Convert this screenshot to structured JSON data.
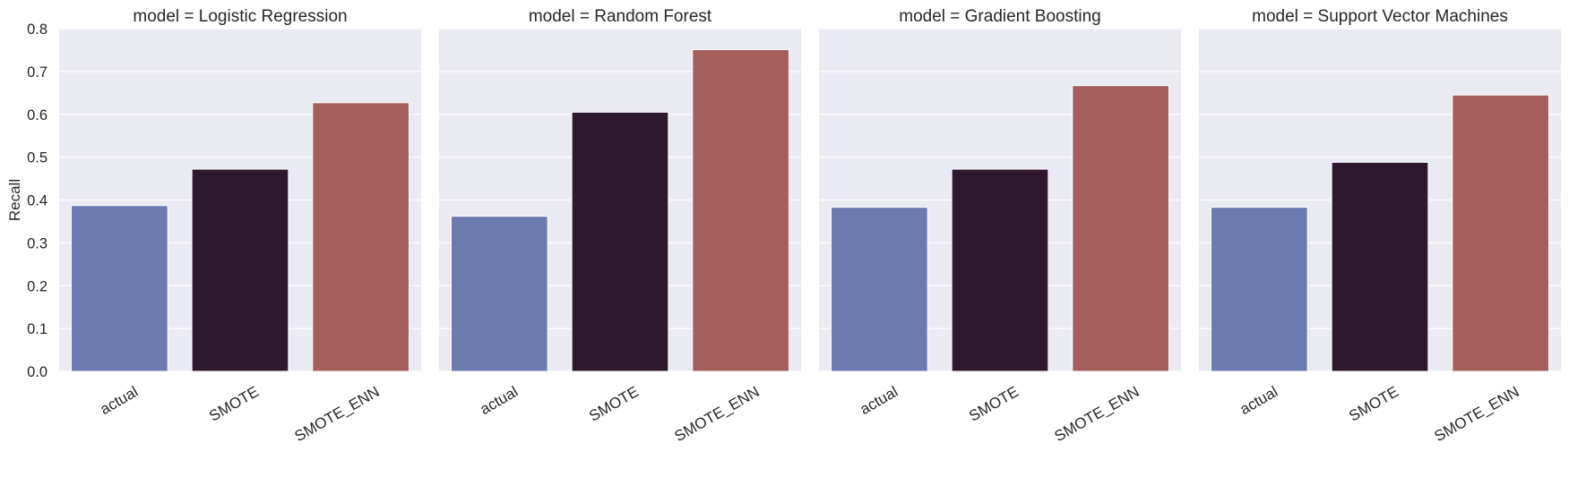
{
  "chart_data": {
    "type": "bar",
    "ylabel": "Recall",
    "ylim": [
      0,
      0.8
    ],
    "yticks": [
      "0.0",
      "0.1",
      "0.2",
      "0.3",
      "0.4",
      "0.5",
      "0.6",
      "0.7",
      "0.8"
    ],
    "grid": true,
    "categories": [
      "actual",
      "SMOTE",
      "SMOTE_ENN"
    ],
    "colors": [
      "#6b7bb0",
      "#2d182e",
      "#a45f5c"
    ],
    "panels": [
      {
        "title": "model = Logistic Regression",
        "values": [
          0.387,
          0.472,
          0.627
        ]
      },
      {
        "title": "model = Random Forest",
        "values": [
          0.362,
          0.605,
          0.751
        ]
      },
      {
        "title": "model = Gradient Boosting",
        "values": [
          0.383,
          0.472,
          0.667
        ]
      },
      {
        "title": "model = Support Vector Machines",
        "values": [
          0.383,
          0.488,
          0.645
        ]
      }
    ]
  }
}
